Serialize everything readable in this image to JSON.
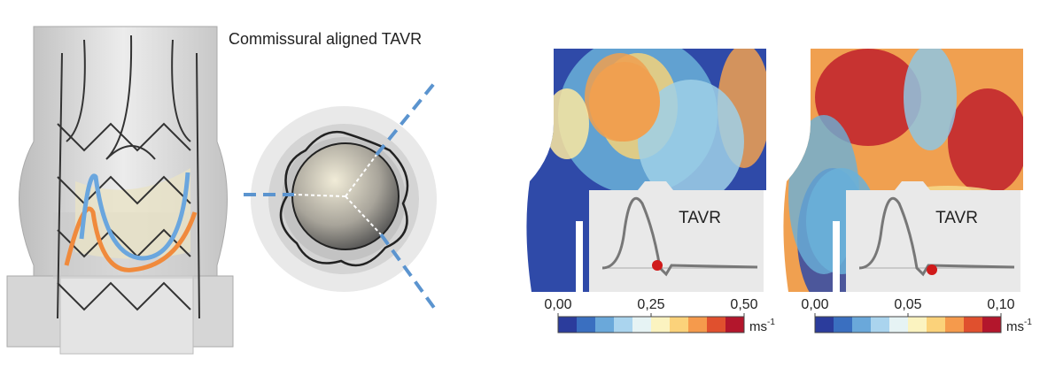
{
  "title": "Commissural aligned TAVR",
  "colorbar_colors": [
    "#2b3c9c",
    "#3a6fc0",
    "#6aa8da",
    "#aad4ee",
    "#e6f3f4",
    "#fbf3c0",
    "#fbd27a",
    "#f59a4c",
    "#e0502e",
    "#b3162c"
  ],
  "panels": [
    {
      "inset_label": "TAVR",
      "ticks": [
        "0,00",
        "0,25",
        "0,50"
      ],
      "unit": "ms",
      "unit_exponent": "-1"
    },
    {
      "inset_label": "TAVR",
      "ticks": [
        "0,00",
        "0,05",
        "0,10"
      ],
      "unit": "ms",
      "unit_exponent": "-1"
    }
  ]
}
